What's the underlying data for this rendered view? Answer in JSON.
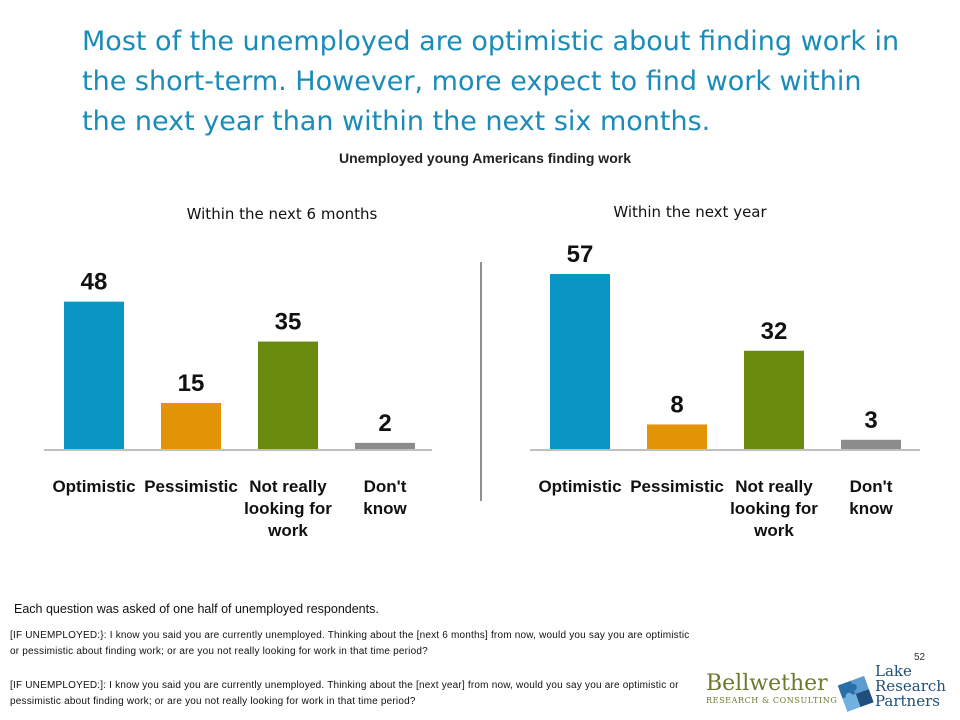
{
  "headline": "Most of the unemployed are optimistic about finding work in the short-term. However, more expect to find work within the next year than within the next six months.",
  "chart_data": [
    {
      "type": "bar",
      "title": "Unemployed young Americans finding work",
      "subtitle": "Within the next 6 months",
      "categories": [
        "Optimistic",
        "Pessimistic",
        "Not really looking for work",
        "Don't know"
      ],
      "values": [
        48,
        15,
        35,
        2
      ],
      "colors": [
        "#0a96c4",
        "#e29406",
        "#6a8a0d",
        "#8c8c8c"
      ],
      "ylim": [
        0,
        60
      ],
      "grid": false
    },
    {
      "type": "bar",
      "title": "Unemployed young Americans finding work",
      "subtitle": "Within the next year",
      "categories": [
        "Optimistic",
        "Pessimistic",
        "Not really looking for work",
        "Don't know"
      ],
      "values": [
        57,
        8,
        32,
        3
      ],
      "colors": [
        "#0a96c4",
        "#e29406",
        "#6a8a0d",
        "#8c8c8c"
      ],
      "ylim": [
        0,
        60
      ],
      "grid": false
    }
  ],
  "footer_note": "Each question was asked of one half of unemployed respondents.",
  "question_1": "[IF UNEMPLOYED:}: I know you said you are currently unemployed.  Thinking about the [next 6 months] from now, would you say you are optimistic or pessimistic about finding work; or are you not really looking for work in that time period?",
  "question_2": "[IF UNEMPLOYED:]: I know you said you are currently unemployed.  Thinking about the [next year] from now, would you say you are optimistic or pessimistic about finding work; or are you not really looking for work in that time period?",
  "page_number": "52",
  "logos": {
    "bellwether_name": "Bellwether",
    "bellwether_sub": "RESEARCH & CONSULTING",
    "lrp_line1": "Lake",
    "lrp_line2": "Research",
    "lrp_line3": "Partners"
  }
}
